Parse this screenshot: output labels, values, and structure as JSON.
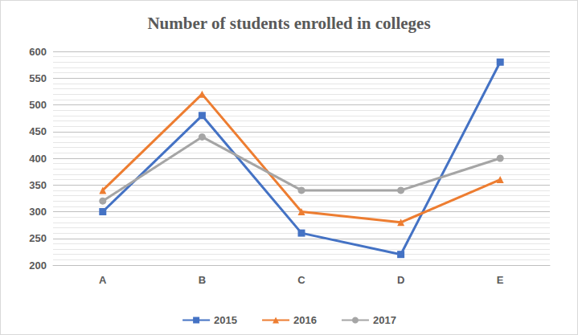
{
  "chart_data": {
    "type": "line",
    "title": "Number of students enrolled in colleges",
    "categories": [
      "A",
      "B",
      "C",
      "D",
      "E"
    ],
    "series": [
      {
        "name": "2015",
        "color": "#4472c4",
        "marker": "square",
        "values": [
          300,
          480,
          260,
          220,
          580
        ]
      },
      {
        "name": "2016",
        "color": "#ed7d31",
        "marker": "triangle",
        "values": [
          340,
          520,
          300,
          280,
          360
        ]
      },
      {
        "name": "2017",
        "color": "#a5a5a5",
        "marker": "circle",
        "values": [
          320,
          440,
          340,
          340,
          400
        ]
      }
    ],
    "ylim": [
      200,
      600
    ],
    "yticks": [
      200,
      250,
      300,
      350,
      400,
      450,
      500,
      550,
      600
    ],
    "grid": true,
    "legend": "bottom"
  }
}
